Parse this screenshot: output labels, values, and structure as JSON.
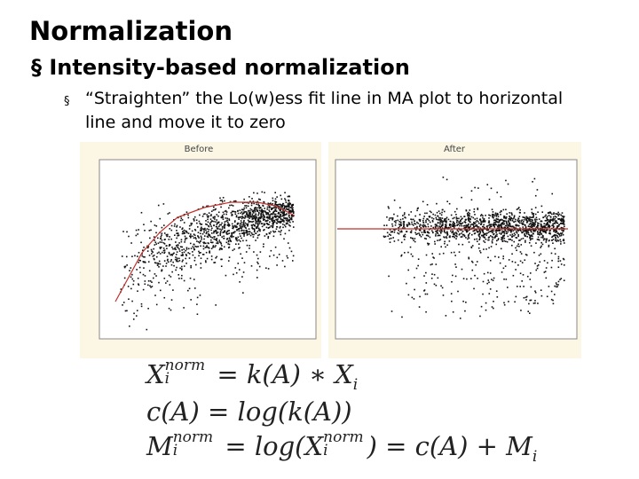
{
  "header": {
    "title": "Normalization"
  },
  "bullets": [
    {
      "text": "Intensity-based normalization",
      "sub": [
        "“Straighten” the Lo(w)ess fit line in MA plot to horizontal line and move it to zero"
      ]
    }
  ],
  "plots": [
    {
      "title": "Before"
    },
    {
      "title": "After"
    }
  ],
  "formulas": [
    {
      "lhs": "X",
      "lhs_sup": "norm",
      "lhs_sub": "i",
      "rhs": "= k(A) ∗ X",
      "rhs_sub": "i"
    },
    {
      "text": "c(A) = log(k(A))"
    },
    {
      "lhs": "M",
      "lhs_sup": "norm",
      "lhs_sub": "i",
      "mid": "= log(X",
      "mid_sup": "norm",
      "mid_sub": "i",
      "rhs": ") = c(A) + M",
      "rhs_sub": "i"
    }
  ]
}
